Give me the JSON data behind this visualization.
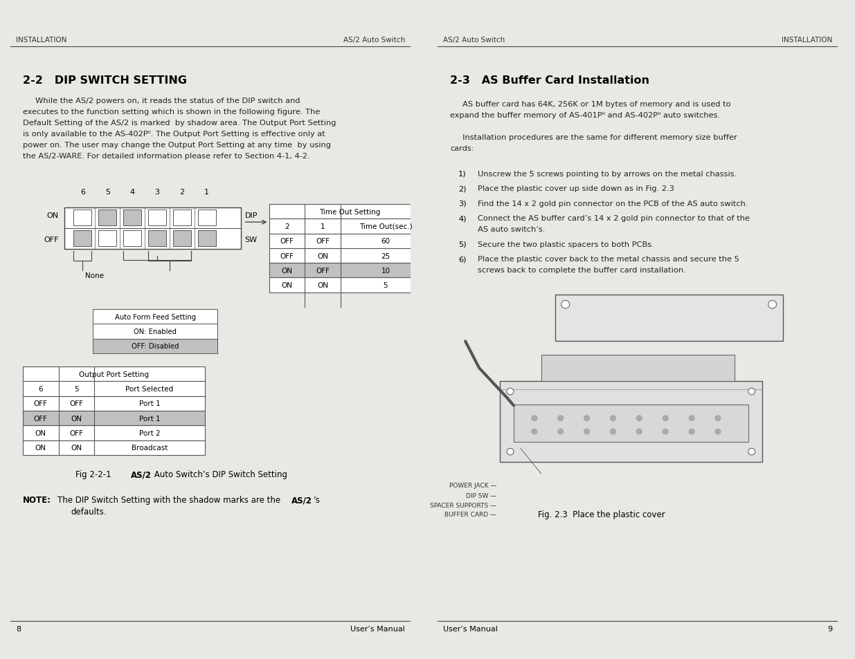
{
  "bg_color": "#e8e8e4",
  "page_bg": "#ffffff",
  "shadow_color": "#c0c0c0",
  "header_line_color": "#555555",
  "left_header_left": "INSTALLATION",
  "left_header_right": "AS/2 Auto Switch",
  "right_header_left": "AS/2 Auto Switch",
  "right_header_right": "INSTALLATION",
  "footer_left_page": "8",
  "footer_left_text": "User’s Manual",
  "footer_right_text": "User’s Manual",
  "footer_right_page": "9"
}
